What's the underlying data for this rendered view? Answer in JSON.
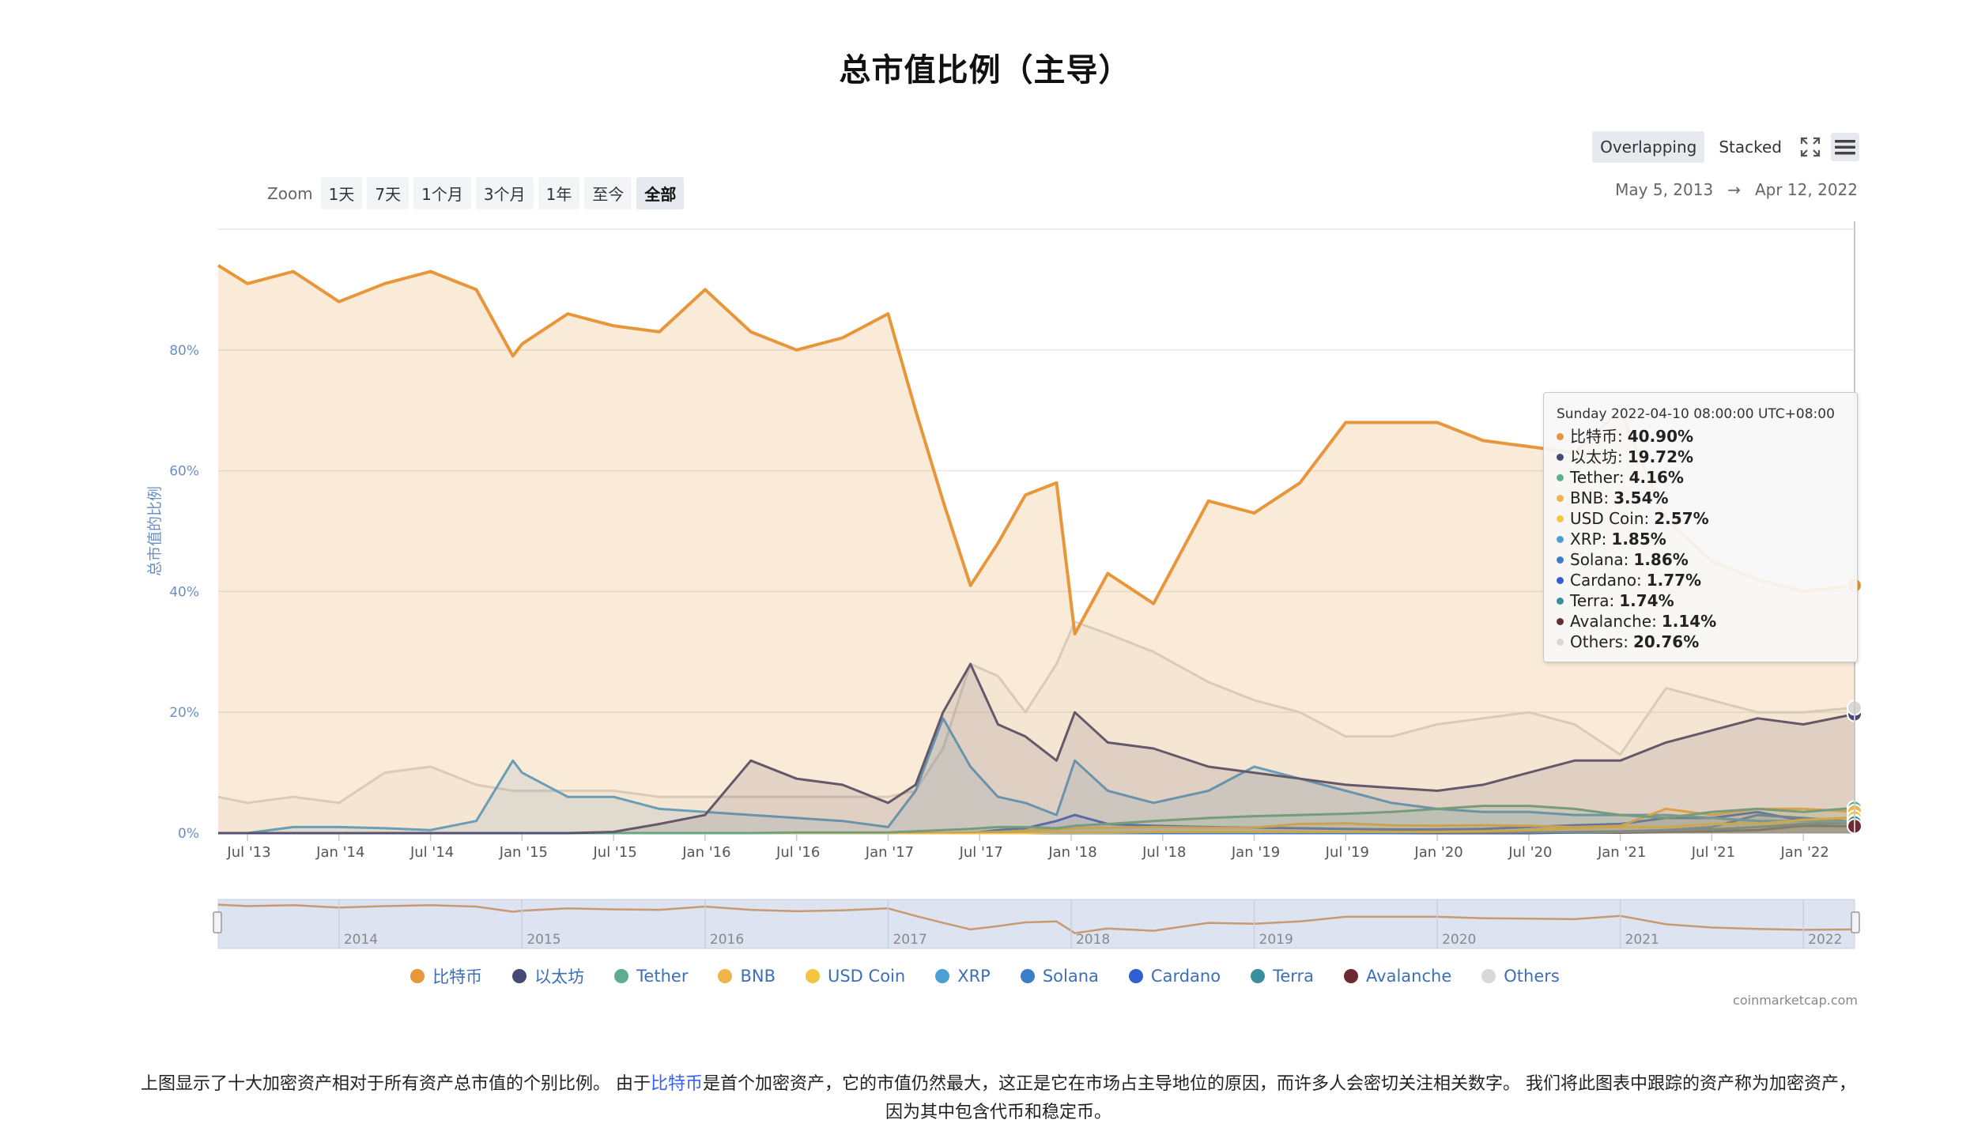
{
  "title": "总市值比例（主导）",
  "toolbar": {
    "overlapping_label": "Overlapping",
    "stacked_label": "Stacked",
    "fullscreen_icon": "fullscreen-icon",
    "menu_icon": "hamburger-menu-icon"
  },
  "zoom": {
    "label": "Zoom",
    "buttons": [
      "1天",
      "7天",
      "1个月",
      "3个月",
      "1年",
      "至今",
      "全部"
    ],
    "active": "全部"
  },
  "range": {
    "from": "May 5, 2013",
    "arrow": "→",
    "to": "Apr 12, 2022"
  },
  "tooltip": {
    "header": "Sunday 2022-04-10 08:00:00 UTC+08:00",
    "rows": [
      {
        "name": "比特币",
        "value": "40.90%",
        "color": "#e8963a"
      },
      {
        "name": "以太坊",
        "value": "19.72%",
        "color": "#454a75"
      },
      {
        "name": "Tether",
        "value": "4.16%",
        "color": "#5fad8e"
      },
      {
        "name": "BNB",
        "value": "3.54%",
        "color": "#f0b44a"
      },
      {
        "name": "USD Coin",
        "value": "2.57%",
        "color": "#f5c440"
      },
      {
        "name": "XRP",
        "value": "1.85%",
        "color": "#4aa0d5"
      },
      {
        "name": "Solana",
        "value": "1.86%",
        "color": "#3a7dc9"
      },
      {
        "name": "Cardano",
        "value": "1.77%",
        "color": "#2f5fd0"
      },
      {
        "name": "Terra",
        "value": "1.74%",
        "color": "#3a8f9e"
      },
      {
        "name": "Avalanche",
        "value": "1.14%",
        "color": "#6e2a32"
      },
      {
        "name": "Others",
        "value": "20.76%",
        "color": "#d8d8d8"
      }
    ]
  },
  "legend": [
    {
      "name": "比特币",
      "color": "#e8963a"
    },
    {
      "name": "以太坊",
      "color": "#454a75"
    },
    {
      "name": "Tether",
      "color": "#5fad8e"
    },
    {
      "name": "BNB",
      "color": "#f0b44a"
    },
    {
      "name": "USD Coin",
      "color": "#f5c440"
    },
    {
      "name": "XRP",
      "color": "#4aa0d5"
    },
    {
      "name": "Solana",
      "color": "#3a7dc9"
    },
    {
      "name": "Cardano",
      "color": "#2f5fd0"
    },
    {
      "name": "Terra",
      "color": "#3a8f9e"
    },
    {
      "name": "Avalanche",
      "color": "#6e2a32"
    },
    {
      "name": "Others",
      "color": "#d8d8d8"
    }
  ],
  "credits": "coinmarketcap.com",
  "description": {
    "before": "上图显示了十大加密资产相对于所有资产总市值的个别比例。 由于",
    "link": "比特币",
    "after": "是首个加密资产，它的市值仍然最大，这正是它在市场占主导地位的原因，而许多人会密切关注相关数字。 我们将此图表中跟踪的资产称为加密资产，因为其中包含代币和稳定币。"
  },
  "chart_data": {
    "type": "area",
    "mode": "overlapping",
    "ylabel": "总市值的比例",
    "ylim": [
      0,
      100
    ],
    "yticks": [
      "0%",
      "20%",
      "40%",
      "60%",
      "80%"
    ],
    "xlim": [
      "2013-05-05",
      "2022-04-12"
    ],
    "xticks": [
      "Jul '13",
      "Jan '14",
      "Jul '14",
      "Jan '15",
      "Jul '15",
      "Jan '16",
      "Jul '16",
      "Jan '17",
      "Jul '17",
      "Jan '18",
      "Jul '18",
      "Jan '19",
      "Jul '19",
      "Jan '20",
      "Jul '20",
      "Jan '21",
      "Jul '21",
      "Jan '22"
    ],
    "navigator_years": [
      "2014",
      "2015",
      "2016",
      "2017",
      "2018",
      "2019",
      "2020",
      "2021",
      "2022"
    ],
    "grid": true,
    "x": [
      2013.34,
      2013.5,
      2013.75,
      2014.0,
      2014.25,
      2014.5,
      2014.75,
      2014.95,
      2015.0,
      2015.25,
      2015.5,
      2015.75,
      2016.0,
      2016.25,
      2016.5,
      2016.75,
      2017.0,
      2017.15,
      2017.3,
      2017.45,
      2017.6,
      2017.75,
      2017.92,
      2018.02,
      2018.2,
      2018.45,
      2018.75,
      2019.0,
      2019.25,
      2019.5,
      2019.75,
      2020.0,
      2020.25,
      2020.5,
      2020.75,
      2021.0,
      2021.25,
      2021.5,
      2021.75,
      2022.0,
      2022.28
    ],
    "series": [
      {
        "name": "比特币",
        "values": [
          94,
          91,
          93,
          88,
          91,
          93,
          90,
          79,
          81,
          86,
          84,
          83,
          90,
          83,
          80,
          82,
          86,
          70,
          55,
          41,
          48,
          56,
          58,
          33,
          43,
          38,
          55,
          53,
          58,
          68,
          68,
          68,
          65,
          64,
          63,
          70,
          52,
          45,
          42,
          40,
          41
        ]
      },
      {
        "name": "以太坊",
        "values": [
          0,
          0,
          0,
          0,
          0,
          0,
          0,
          0,
          0,
          0,
          0.2,
          1.5,
          3,
          12,
          9,
          8,
          5,
          8,
          20,
          28,
          18,
          16,
          12,
          20,
          15,
          14,
          11,
          10,
          9,
          8,
          7.5,
          7,
          8,
          10,
          12,
          12,
          15,
          17,
          19,
          18,
          19.7
        ]
      },
      {
        "name": "Tether",
        "values": [
          0,
          0,
          0,
          0,
          0,
          0,
          0,
          0,
          0,
          0,
          0,
          0,
          0,
          0,
          0.1,
          0.1,
          0.1,
          0.3,
          0.5,
          0.7,
          1,
          1,
          0.8,
          1.2,
          1.5,
          2,
          2.5,
          2.8,
          3,
          3.2,
          3.5,
          4,
          4.5,
          4.5,
          4,
          3,
          2.5,
          3.5,
          4,
          3.5,
          4.16
        ]
      },
      {
        "name": "BNB",
        "values": [
          0,
          0,
          0,
          0,
          0,
          0,
          0,
          0,
          0,
          0,
          0,
          0,
          0,
          0,
          0,
          0,
          0,
          0,
          0,
          0.1,
          0.2,
          0.4,
          0.6,
          0.8,
          0.9,
          1,
          0.9,
          0.9,
          1.5,
          1.6,
          1.3,
          1.2,
          1.3,
          1.2,
          1.0,
          1.2,
          4,
          3,
          4,
          4,
          3.54
        ]
      },
      {
        "name": "USD Coin",
        "values": [
          0,
          0,
          0,
          0,
          0,
          0,
          0,
          0,
          0,
          0,
          0,
          0,
          0,
          0,
          0,
          0,
          0,
          0,
          0,
          0,
          0,
          0,
          0.1,
          0.1,
          0.1,
          0.2,
          0.2,
          0.2,
          0.2,
          0.2,
          0.2,
          0.2,
          0.3,
          0.5,
          0.8,
          1,
          1,
          1.5,
          1.5,
          2.2,
          2.57
        ]
      },
      {
        "name": "XRP",
        "values": [
          0,
          0,
          1,
          1,
          0.8,
          0.5,
          2,
          12,
          10,
          6,
          6,
          4,
          3.5,
          3,
          2.5,
          2,
          1,
          7,
          19,
          11,
          6,
          5,
          3,
          12,
          7,
          5,
          7,
          11,
          9,
          7,
          5,
          4,
          3.5,
          3.5,
          3,
          3,
          3,
          2.5,
          2,
          2,
          1.85
        ]
      },
      {
        "name": "Solana",
        "values": [
          0,
          0,
          0,
          0,
          0,
          0,
          0,
          0,
          0,
          0,
          0,
          0,
          0,
          0,
          0,
          0,
          0,
          0,
          0,
          0,
          0,
          0,
          0,
          0,
          0,
          0,
          0,
          0,
          0,
          0,
          0,
          0.1,
          0.1,
          0.1,
          0.2,
          0.3,
          0.5,
          1,
          3,
          2.5,
          1.86
        ]
      },
      {
        "name": "Cardano",
        "values": [
          0,
          0,
          0,
          0,
          0,
          0,
          0,
          0,
          0,
          0,
          0,
          0,
          0,
          0,
          0,
          0,
          0,
          0,
          0,
          0,
          0.5,
          0.8,
          2,
          3,
          1.5,
          1.2,
          1,
          0.9,
          0.8,
          0.7,
          0.6,
          0.6,
          0.7,
          1,
          1.3,
          1.5,
          2.5,
          2.5,
          3.5,
          2,
          1.77
        ]
      },
      {
        "name": "Terra",
        "values": [
          0,
          0,
          0,
          0,
          0,
          0,
          0,
          0,
          0,
          0,
          0,
          0,
          0,
          0,
          0,
          0,
          0,
          0,
          0,
          0,
          0,
          0,
          0,
          0,
          0,
          0,
          0,
          0,
          0,
          0.1,
          0.1,
          0.1,
          0.1,
          0.1,
          0.1,
          0.2,
          0.5,
          0.6,
          1,
          1.5,
          1.74
        ]
      },
      {
        "name": "Avalanche",
        "values": [
          0,
          0,
          0,
          0,
          0,
          0,
          0,
          0,
          0,
          0,
          0,
          0,
          0,
          0,
          0,
          0,
          0,
          0,
          0,
          0,
          0,
          0,
          0,
          0,
          0,
          0,
          0,
          0,
          0,
          0,
          0,
          0,
          0,
          0,
          0.1,
          0.1,
          0.2,
          0.3,
          0.5,
          1.2,
          1.14
        ]
      },
      {
        "name": "Others",
        "values": [
          6,
          5,
          6,
          5,
          10,
          11,
          8,
          7,
          7,
          7,
          7,
          6,
          6,
          6,
          6,
          6,
          6,
          7,
          14,
          28,
          26,
          20,
          28,
          35,
          33,
          30,
          25,
          22,
          20,
          16,
          16,
          18,
          19,
          20,
          18,
          13,
          24,
          22,
          20,
          20,
          20.76
        ]
      }
    ]
  }
}
